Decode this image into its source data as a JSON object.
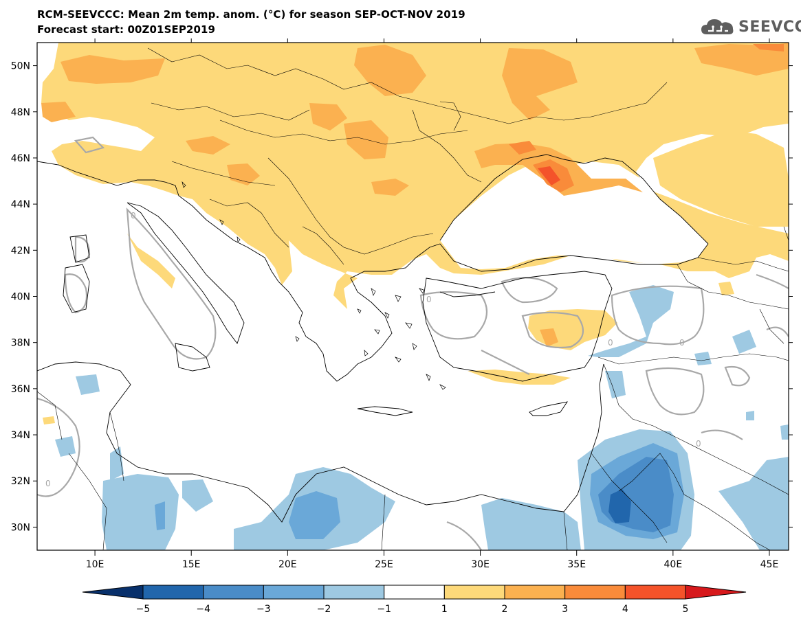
{
  "title": {
    "line1": "RCM-SEEVCCC: Mean 2m temp. anom. (°C) for season SEP-OCT-NOV 2019",
    "line2": "Forecast start: 00Z01SEP2019"
  },
  "logo": {
    "text": "SEEVCCC",
    "icon": "cloud-icon",
    "color": "#5e5e5e"
  },
  "map": {
    "lon_range": [
      7,
      46
    ],
    "lat_range": [
      29,
      51
    ],
    "lon_ticks": [
      "10E",
      "15E",
      "20E",
      "25E",
      "30E",
      "35E",
      "40E",
      "45E"
    ],
    "lat_ticks": [
      "50N",
      "48N",
      "46N",
      "44N",
      "42N",
      "40N",
      "38N",
      "36N",
      "34N",
      "32N",
      "30N"
    ],
    "contour_labels": [
      "0",
      "0",
      "0",
      "0",
      "0",
      "0"
    ]
  },
  "colorbar": {
    "labels": [
      "−5",
      "−4",
      "−3",
      "−2",
      "−1",
      "1",
      "2",
      "3",
      "4",
      "5"
    ],
    "colors": [
      "#08306b",
      "#2166ac",
      "#4a8cc8",
      "#6aa8d8",
      "#9ec9e2",
      "#ffffff",
      "#fdd97a",
      "#fbb150",
      "#f98b3a",
      "#f4532a",
      "#d7191c"
    ]
  }
}
